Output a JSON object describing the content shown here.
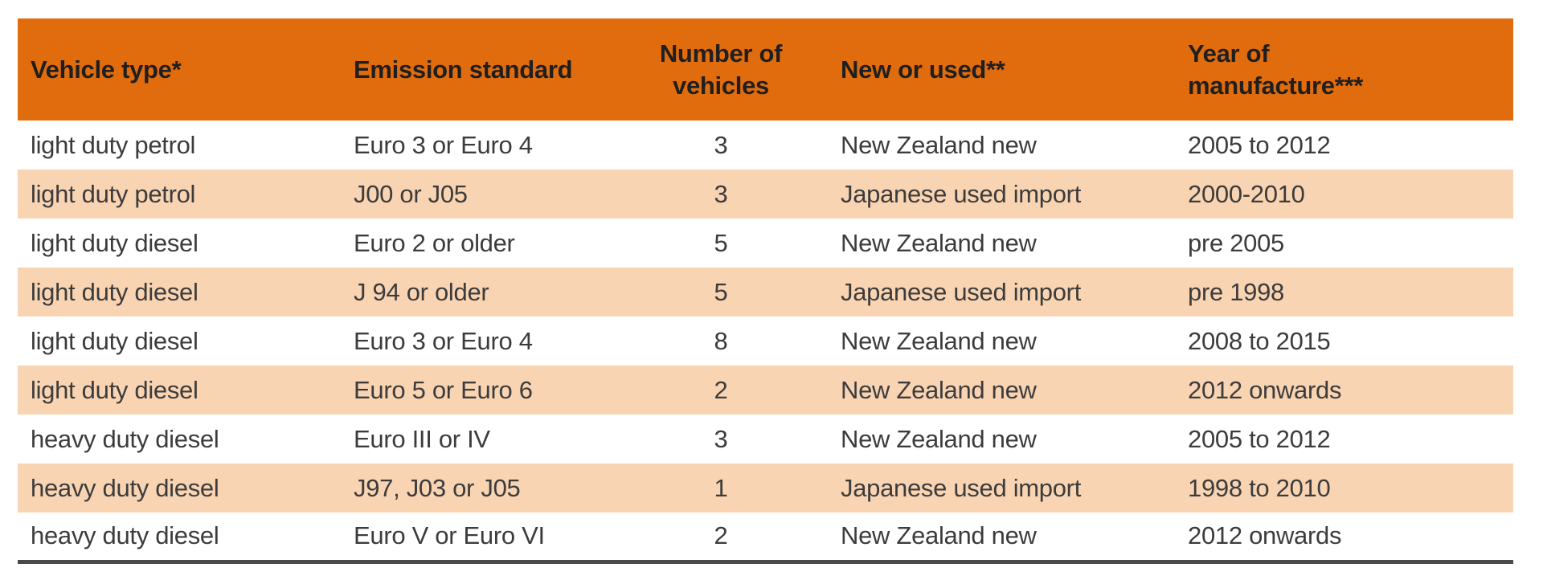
{
  "table": {
    "columns": [
      {
        "label": "Vehicle type*",
        "align": "left"
      },
      {
        "label": "Emission standard",
        "align": "left"
      },
      {
        "label": "Number of vehicles",
        "align": "center"
      },
      {
        "label": "New or used**",
        "align": "left"
      },
      {
        "label": "Year of manufacture***",
        "align": "left"
      }
    ],
    "rows": [
      [
        "light duty petrol",
        "Euro 3 or Euro 4",
        "3",
        "New Zealand new",
        "2005 to 2012"
      ],
      [
        "light duty petrol",
        "J00 or J05",
        "3",
        "Japanese used import",
        "2000-2010"
      ],
      [
        "light duty diesel",
        "Euro 2 or older",
        "5",
        "New Zealand new",
        "pre 2005"
      ],
      [
        "light duty diesel",
        "J 94 or older",
        "5",
        "Japanese used import",
        "pre 1998"
      ],
      [
        "light duty diesel",
        "Euro 3 or Euro 4",
        "8",
        "New Zealand new",
        "2008 to 2015"
      ],
      [
        "light duty diesel",
        "Euro 5 or Euro 6",
        "2",
        "New Zealand new",
        "2012 onwards"
      ],
      [
        "heavy duty diesel",
        "Euro III or IV",
        "3",
        "New Zealand new",
        "2005 to 2012"
      ],
      [
        "heavy duty diesel",
        "J97, J03 or J05",
        "1",
        "Japanese used import",
        "1998 to 2010"
      ],
      [
        "heavy duty diesel",
        "Euro V or Euro VI",
        "2",
        "New Zealand new",
        "2012 onwards"
      ]
    ],
    "colors": {
      "header_bg": "#e16c0d",
      "alt_row_bg": "#f9d4b2",
      "header_text": "#1f1f1f",
      "body_text": "#3c3c3c",
      "bottom_border": "#4a4a4a"
    }
  }
}
